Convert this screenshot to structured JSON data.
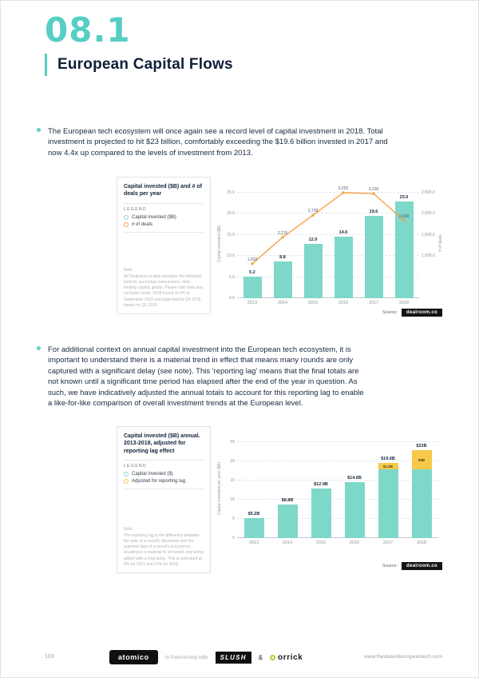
{
  "header": {
    "section_number": "08.1",
    "title": "European Capital Flows"
  },
  "bullets": [
    {
      "text": "The European tech ecosystem will once again see a record level of capital investment in 2018. Total investment is projected to hit $23 billion, comfortably exceeding the $19.6 billion invested in 2017 and now 4.4x up compared to the levels of investment from 2013."
    },
    {
      "text": "For additional context on annual capital investment into the European tech ecosystem, it is important to understand there is a material trend in effect that means many rounds are only captured with a significant delay (see note). This 'reporting lag' means that the final totals are not known until a significant time period has elapsed after the end of the year in question. As such, we have indicatively adjusted the annual totals to account for this reporting lag to enable a like-for-like comparison of overall investment trends at the European level."
    }
  ],
  "chart_data": [
    {
      "type": "bar",
      "panel": {
        "title": "Capital invested ($B) and # of deals per year",
        "legend_title": "LEGEND",
        "legend": [
          {
            "label": "Capital invested ($B)",
            "color": "#7ED8C9"
          },
          {
            "label": "# of deals",
            "color": "#F5A24B"
          }
        ],
        "note_label": "Note:",
        "note": "All Dealroom.co data excludes the following: biotech, secondary transactions, debt, lending capital, grants. Please note data also excludes Israel. 2018 based on H1 to September 2018 and projected for Q4 2018 based on Q1 2018."
      },
      "categories": [
        "2013",
        "2014",
        "2015",
        "2016",
        "2017",
        "2018"
      ],
      "bars": {
        "name": "Capital invested ($B)",
        "values": [
          5.2,
          8.8,
          12.9,
          14.6,
          19.6,
          23.0
        ],
        "labels": [
          "5.2",
          "8.8",
          "12.9",
          "14.6",
          "19.6",
          "23.0"
        ],
        "color": "#7ED8C9"
      },
      "line": {
        "name": "# of deals",
        "values": [
          1602,
          2215,
          2728,
          3252,
          3230,
          2608
        ],
        "labels": [
          "1,602",
          "2,215",
          "2,728",
          "3,252",
          "3,230",
          "2,608"
        ],
        "color": "#F5A24B",
        "axis": {
          "min": 800,
          "max": 3252
        }
      },
      "y_left": {
        "title": "Capital invested ($B)",
        "max": 25,
        "ticks": [
          {
            "label": "25.0",
            "v": 25
          },
          {
            "label": "20.0",
            "v": 20
          },
          {
            "label": "15.0",
            "v": 15
          },
          {
            "label": "10.0",
            "v": 10
          },
          {
            "label": "5.0",
            "v": 5
          },
          {
            "label": "0.0",
            "v": 0
          }
        ]
      },
      "y_right": {
        "title": "# of deals",
        "ticks": [
          {
            "label": "2,500.0",
            "v": 25
          },
          {
            "label": "2,000.0",
            "v": 20
          },
          {
            "label": "1,500.0",
            "v": 15
          },
          {
            "label": "1,000.0",
            "v": 10
          }
        ]
      },
      "grid": true,
      "legend_position": "left-panel",
      "source_label": "Source:",
      "source_logo": "dealroom.co"
    },
    {
      "type": "bar",
      "panel": {
        "title": "Capital invested ($B) annual. 2013-2018, adjusted for reporting lag effect",
        "legend_title": "LEGEND",
        "legend": [
          {
            "label": "Capital invested ($)",
            "color": "#7ED8C9"
          },
          {
            "label": "Adjusted for reporting lag",
            "color": "#F6C94A"
          }
        ],
        "note_label": "Note:",
        "note": "The reporting lag is the difference between the date of a round's disclosure and the reported date of a round's occurrence, resulting in a material % of rounds only being added with a long delay. This is estimated at 8% for 2017 and 22% for 2018."
      },
      "categories": [
        "2013",
        "2014",
        "2015",
        "2016",
        "2017",
        "2018"
      ],
      "series": [
        {
          "name": "Capital invested ($)",
          "values": [
            5.2,
            8.8,
            12.9,
            14.6,
            18.0,
            18.0
          ],
          "color": "#7ED8C9"
        },
        {
          "name": "Adjusted for reporting lag",
          "values": [
            0,
            0,
            0,
            0,
            1.6,
            5.0
          ],
          "color": "#F6C94A",
          "labels": [
            "",
            "",
            "",
            "",
            "$1.6B",
            "$5B"
          ]
        }
      ],
      "totals": [
        5.2,
        8.8,
        12.9,
        14.6,
        19.6,
        23.0
      ],
      "total_labels": [
        "$5.2B",
        "$8.8B",
        "$12.9B",
        "$14.6B",
        "$19.6B",
        "$23B"
      ],
      "y_left": {
        "title": "Capital invested per year ($B)",
        "max": 25,
        "ticks": [
          {
            "label": "25",
            "v": 25
          },
          {
            "label": "20",
            "v": 20
          },
          {
            "label": "15",
            "v": 15
          },
          {
            "label": "10",
            "v": 10
          },
          {
            "label": "5",
            "v": 5
          },
          {
            "label": "0",
            "v": 0
          }
        ]
      },
      "grid": true,
      "legend_position": "left-panel",
      "source_label": "Source:",
      "source_logo": "dealroom.co"
    }
  ],
  "footer": {
    "page_number": "103",
    "atomico": "atomico",
    "partnership": "In Partnership with",
    "slush": "SLUSH",
    "ampersand": "&",
    "orrick": "orrick",
    "website": "www.thestateofeuropeantech.com"
  }
}
